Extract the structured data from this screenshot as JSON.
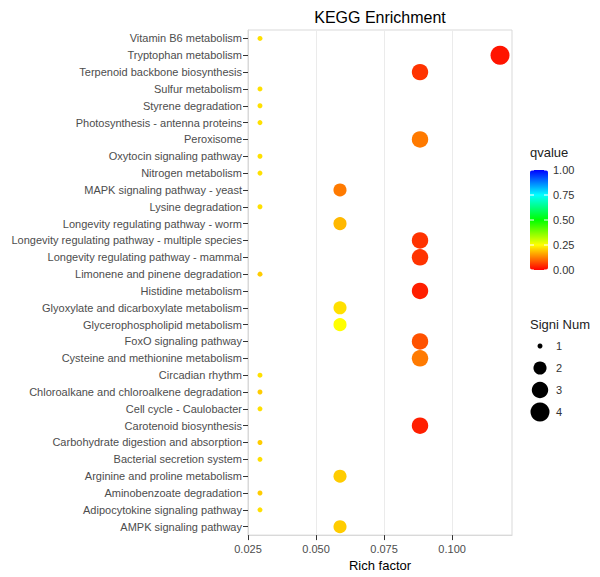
{
  "chart_data": {
    "type": "scatter",
    "title": "KEGG Enrichment",
    "x_label": "Rich factor",
    "categories": [
      "Vitamin B6 metabolism",
      "Tryptophan metabolism",
      "Terpenoid backbone biosynthesis",
      "Sulfur metabolism",
      "Styrene degradation",
      "Photosynthesis - antenna proteins",
      "Peroxisome",
      "Oxytocin signaling pathway",
      "Nitrogen metabolism",
      "MAPK signaling pathway - yeast",
      "Lysine degradation",
      "Longevity regulating pathway - worm",
      "Longevity regulating pathway - multiple species",
      "Longevity regulating pathway - mammal",
      "Limonene and pinene degradation",
      "Histidine metabolism",
      "Glyoxylate and dicarboxylate metabolism",
      "Glycerophospholipid metabolism",
      "FoxO signaling pathway",
      "Cysteine and methionine metabolism",
      "Circadian rhythm",
      "Chloroalkane and chloroalkene degradation",
      "Cell cycle - Caulobacter",
      "Carotenoid biosynthesis",
      "Carbohydrate digestion and absorption",
      "Bacterial secretion system",
      "Arginine and proline metabolism",
      "Aminobenzoate degradation",
      "Adipocytokine signaling pathway",
      "AMPK signaling pathway"
    ],
    "values": [
      0.0294,
      0.1176,
      0.0882,
      0.0294,
      0.0294,
      0.0294,
      0.0882,
      0.0294,
      0.0294,
      0.0588,
      0.0294,
      0.0588,
      0.0882,
      0.0882,
      0.0294,
      0.0882,
      0.0588,
      0.0588,
      0.0882,
      0.0882,
      0.0294,
      0.0294,
      0.0294,
      0.0882,
      0.0294,
      0.0294,
      0.0588,
      0.0294,
      0.0294,
      0.0588
    ],
    "qvalue": [
      0.22,
      0.02,
      0.05,
      0.22,
      0.22,
      0.22,
      0.12,
      0.22,
      0.22,
      0.12,
      0.22,
      0.18,
      0.05,
      0.05,
      0.2,
      0.03,
      0.22,
      0.25,
      0.08,
      0.12,
      0.22,
      0.2,
      0.22,
      0.03,
      0.2,
      0.22,
      0.2,
      0.2,
      0.22,
      0.2
    ],
    "signi_num": [
      1,
      4,
      3,
      1,
      1,
      1,
      3,
      1,
      1,
      2,
      1,
      2,
      3,
      3,
      1,
      3,
      2,
      2,
      3,
      3,
      1,
      1,
      1,
      3,
      1,
      1,
      2,
      1,
      1,
      2
    ],
    "xlim": [
      0.025,
      0.122
    ],
    "xticks": [
      {
        "value": 0.025,
        "label": "0.025"
      },
      {
        "value": 0.05,
        "label": "0.050"
      },
      {
        "value": 0.075,
        "label": "0.075"
      },
      {
        "value": 0.1,
        "label": "0.100"
      }
    ],
    "grid": true,
    "colorbar": {
      "title": "qvalue",
      "range": [
        0,
        1
      ],
      "ticks": [
        {
          "value": 0,
          "label": "0.00"
        },
        {
          "value": 0.25,
          "label": "0.25"
        },
        {
          "value": 0.5,
          "label": "0.50"
        },
        {
          "value": 0.75,
          "label": "0.75"
        },
        {
          "value": 1,
          "label": "1.00"
        }
      ]
    },
    "size_legend": {
      "title": "Signi Num",
      "ticks": [
        1,
        2,
        3,
        4
      ]
    }
  }
}
